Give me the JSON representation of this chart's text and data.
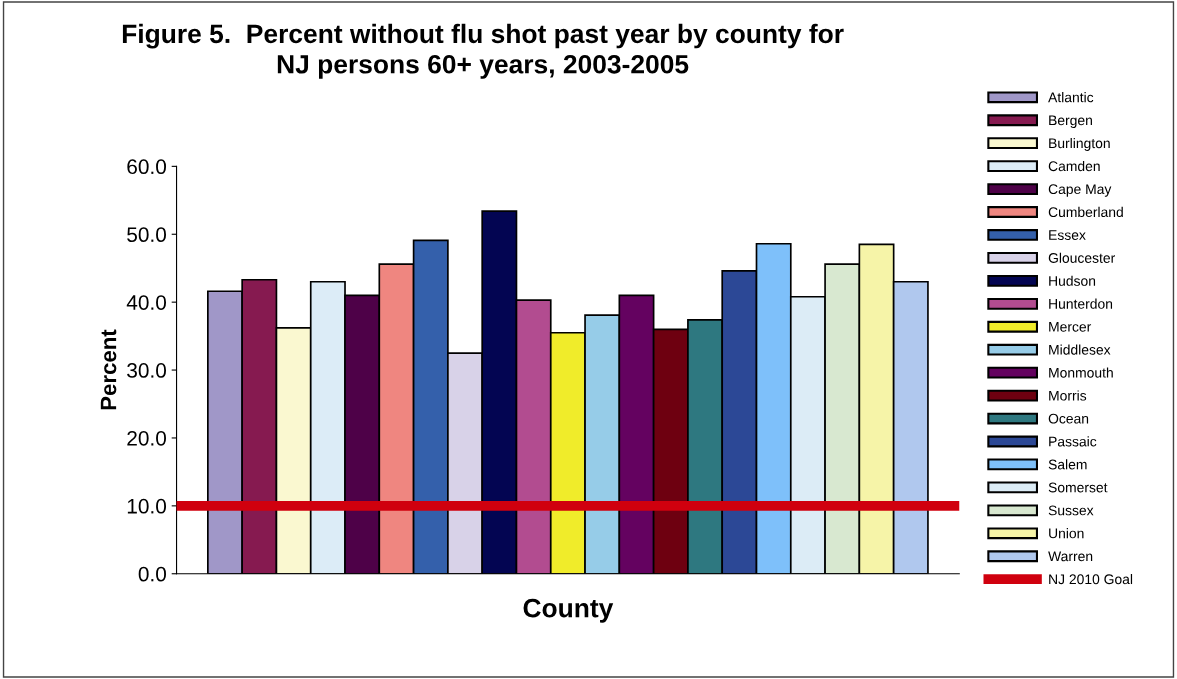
{
  "chart_data": {
    "type": "bar",
    "title": "Figure 5.  Percent without flu shot past year by county for\nNJ persons 60+ years, 2003-2005",
    "xlabel": "County",
    "ylabel": "Percent",
    "categories": [
      null
    ],
    "series": [
      {
        "name": "Atlantic",
        "color": "#a097c8",
        "values": [
          41.6
        ]
      },
      {
        "name": "Bergen",
        "color": "#861a50",
        "values": [
          43.3
        ]
      },
      {
        "name": "Burlington",
        "color": "#faf8d0",
        "values": [
          36.2
        ]
      },
      {
        "name": "Camden",
        "color": "#dcecf7",
        "values": [
          43.0
        ]
      },
      {
        "name": "Cape May",
        "color": "#4e0148",
        "values": [
          41.0
        ]
      },
      {
        "name": "Cumberland",
        "color": "#ef8680",
        "values": [
          45.6
        ]
      },
      {
        "name": "Essex",
        "color": "#3460ab",
        "values": [
          49.1
        ]
      },
      {
        "name": "Gloucester",
        "color": "#d8d2e8",
        "values": [
          32.5
        ]
      },
      {
        "name": "Hudson",
        "color": "#030552",
        "values": [
          53.4
        ]
      },
      {
        "name": "Hunterdon",
        "color": "#b24c90",
        "values": [
          40.3
        ]
      },
      {
        "name": "Mercer",
        "color": "#f0ec2a",
        "values": [
          35.5
        ]
      },
      {
        "name": "Middlesex",
        "color": "#96cce8",
        "values": [
          38.1
        ]
      },
      {
        "name": "Monmouth",
        "color": "#640260",
        "values": [
          41.0
        ]
      },
      {
        "name": "Morris",
        "color": "#6e0010",
        "values": [
          36.0
        ]
      },
      {
        "name": "Ocean",
        "color": "#2e7880",
        "values": [
          37.4
        ]
      },
      {
        "name": "Passaic",
        "color": "#2c4896",
        "values": [
          44.6
        ]
      },
      {
        "name": "Salem",
        "color": "#7ec0fa",
        "values": [
          48.6
        ]
      },
      {
        "name": "Somerset",
        "color": "#dcecf6",
        "values": [
          40.8
        ]
      },
      {
        "name": "Sussex",
        "color": "#d8e8d0",
        "values": [
          45.6
        ]
      },
      {
        "name": "Union",
        "color": "#f6f4a8",
        "values": [
          48.5
        ]
      },
      {
        "name": "Warren",
        "color": "#b0c8ee",
        "values": [
          43.0
        ]
      }
    ],
    "ref_lines": [
      {
        "axis": "y",
        "value": 10,
        "label": "NJ 2010 Goal",
        "color": "#d0000e"
      }
    ],
    "ylim": [
      0,
      60
    ],
    "yticks": [
      {
        "value": 0,
        "label": "0.0"
      },
      {
        "value": 10,
        "label": "10.0"
      },
      {
        "value": 20,
        "label": "20.0"
      },
      {
        "value": 30,
        "label": "30.0"
      },
      {
        "value": 40,
        "label": "40.0"
      },
      {
        "value": 50,
        "label": "50.0"
      },
      {
        "value": 60,
        "label": "60.0"
      }
    ],
    "grid": false,
    "legend": "right"
  }
}
